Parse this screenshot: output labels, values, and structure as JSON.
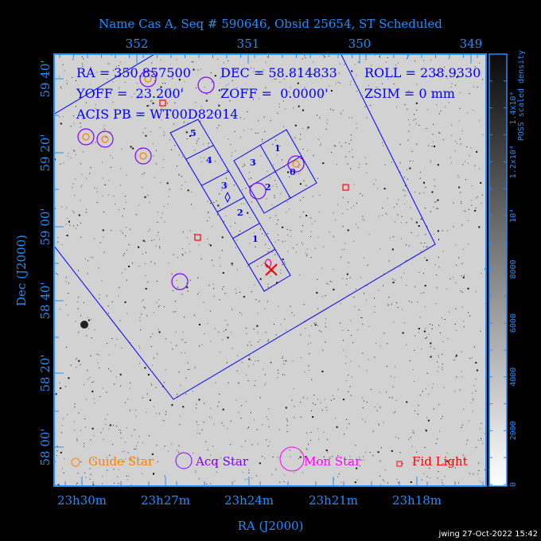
{
  "title": "Name Cas A, Seq # 590646, Obsid 25654, ST Scheduled",
  "info": {
    "ra": "RA = 350.857500",
    "dec": "DEC = 58.814833",
    "roll": "ROLL = 238.9330",
    "yoff": "YOFF =  23.200'",
    "zoff": "ZOFF =  0.0000'",
    "zsim": "ZSIM = 0 mm",
    "acis_pb": "ACIS PB = WT00D82014"
  },
  "top_axis_ticks": [
    "352",
    "351",
    "350",
    "349"
  ],
  "bottom_axis_ticks": [
    "23h30m",
    "23h27m",
    "23h24m",
    "23h21m",
    "23h18m"
  ],
  "left_axis_ticks": [
    "59 40'",
    "59 20'",
    "59 00'",
    "58 40'",
    "58 20'",
    "58 00'"
  ],
  "xlabel": "RA (J2000)",
  "ylabel": "Dec (J2000)",
  "colorbar": {
    "label": "POSS scaled density",
    "ticks": [
      "0",
      "2000",
      "4000",
      "6000",
      "8000",
      "10⁴",
      "1.2x10⁴",
      "1.4x10⁴"
    ],
    "range": [
      0,
      16000
    ]
  },
  "acis_s_chips": [
    "5",
    "4",
    "3",
    "2",
    "1",
    "0"
  ],
  "acis_i_chips": [
    "1",
    "3",
    "0",
    "2"
  ],
  "legend": {
    "guide": "Guide Star",
    "acq": "Acq Star",
    "mon": "Mon Star",
    "fid": "Fid Light"
  },
  "colors": {
    "axis": "#1e8fff",
    "fov": "#0000ff",
    "guide": "#ff8000",
    "acq": "#8000ff",
    "mon": "#ff00ff",
    "fid": "#ff0000"
  },
  "footer": "jwing 27-Oct-2022 15:42"
}
